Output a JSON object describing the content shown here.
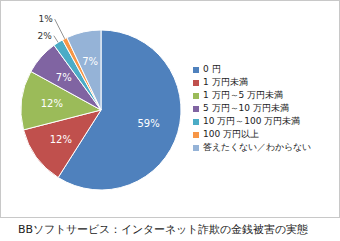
{
  "chart_data": {
    "type": "pie",
    "title": "BBソフトサービス：インターネット詐欺の金銭被害の実態",
    "categories": [
      "0 円",
      "1 万円未満",
      "1 万円～5 万円未満",
      "5 万円～10 万円未満",
      "10 万円～100 万円未満",
      "100 万円以上",
      "答えたくない／わからない"
    ],
    "values": [
      59,
      12,
      12,
      7,
      2,
      1,
      7
    ],
    "value_labels": [
      "59%",
      "12%",
      "12%",
      "7%",
      "2%",
      "1%",
      "7%"
    ],
    "colors": [
      "#4f81bd",
      "#c0504d",
      "#9bbb59",
      "#8064a2",
      "#4bacc6",
      "#f79646",
      "#95b3d7"
    ],
    "data_labels": true,
    "legend": "right"
  }
}
